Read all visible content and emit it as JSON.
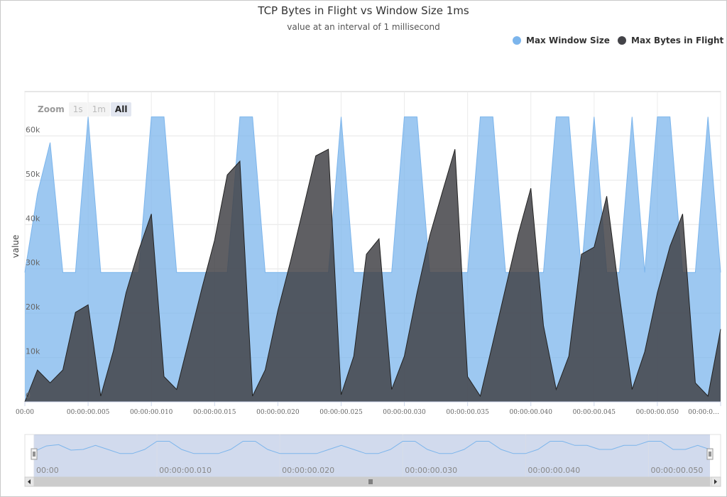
{
  "title": "TCP Bytes in Flight vs Window Size 1ms",
  "subtitle": "value at an interval of 1 millisecond",
  "zoom": {
    "label": "Zoom",
    "buttons": [
      "1s",
      "1m",
      "All"
    ],
    "active": "All"
  },
  "colors": {
    "window": "#7cb5ec",
    "flight": "#434348"
  },
  "navigator_labels": [
    "00:00",
    "00:00:00.010",
    "00:00:00.020",
    "00:00:00.030",
    "00:00:00.040",
    "00:00:00.050"
  ],
  "chart_data": {
    "type": "area",
    "title": "TCP Bytes in Flight vs Window Size 1ms",
    "subtitle": "value at an interval of 1 millisecond",
    "ylabel": "value",
    "xlabel": "",
    "ylim": [
      0,
      70000
    ],
    "xlim": [
      0,
      55
    ],
    "x_unit": "ms",
    "yticks": [
      "0",
      "10k",
      "20k",
      "30k",
      "40k",
      "50k",
      "60k"
    ],
    "xticks": [
      "00:00",
      "00:00:00.005",
      "00:00:00.010",
      "00:00:00.015",
      "00:00:00.020",
      "00:00:00.025",
      "00:00:00.030",
      "00:00:00.035",
      "00:00:00.040",
      "00:00:00.045",
      "00:00:00.050",
      "00:00:0…"
    ],
    "grid": true,
    "legend_position": "top-right",
    "series": [
      {
        "name": "Max Window Size",
        "x": [
          0,
          1,
          2,
          3,
          4,
          5,
          6,
          7,
          8,
          9,
          10,
          11,
          12,
          13,
          14,
          15,
          16,
          17,
          18,
          19,
          20,
          21,
          22,
          23,
          24,
          25,
          26,
          27,
          28,
          29,
          30,
          31,
          32,
          33,
          34,
          35,
          36,
          37,
          38,
          39,
          40,
          41,
          42,
          43,
          44,
          45,
          46,
          47,
          48,
          49,
          50,
          51,
          52,
          53,
          54,
          55
        ],
        "values": [
          29200,
          47000,
          58500,
          29200,
          29200,
          64300,
          29200,
          29200,
          29200,
          29200,
          64300,
          64300,
          29200,
          29200,
          29200,
          29200,
          29200,
          64300,
          64300,
          29200,
          29200,
          29200,
          29200,
          29200,
          29200,
          64300,
          29200,
          29200,
          29200,
          29200,
          64300,
          64300,
          29200,
          29200,
          29200,
          29200,
          64300,
          64300,
          29200,
          29200,
          29200,
          29200,
          64300,
          64300,
          29200,
          64300,
          29200,
          29200,
          64300,
          29200,
          64300,
          64300,
          29200,
          29200,
          64300,
          29200
        ]
      },
      {
        "name": "Max Bytes in Flight",
        "x": [
          0,
          1,
          2,
          3,
          4,
          5,
          6,
          7,
          8,
          9,
          10,
          11,
          12,
          13,
          14,
          15,
          16,
          17,
          18,
          19,
          20,
          21,
          22,
          23,
          24,
          25,
          26,
          27,
          28,
          29,
          30,
          31,
          32,
          33,
          34,
          35,
          36,
          37,
          38,
          39,
          40,
          41,
          42,
          43,
          44,
          45,
          46,
          47,
          48,
          49,
          50,
          51,
          52,
          53,
          54,
          55
        ],
        "values": [
          0,
          7200,
          4300,
          7200,
          20200,
          21900,
          1300,
          11500,
          24600,
          34200,
          42400,
          5700,
          2800,
          14200,
          25700,
          36500,
          51200,
          54300,
          1300,
          7200,
          20600,
          31700,
          43500,
          55500,
          57000,
          1600,
          10300,
          33300,
          36800,
          2800,
          10300,
          24600,
          37400,
          47300,
          57000,
          5700,
          1300,
          13400,
          25700,
          37800,
          48200,
          17200,
          2800,
          10300,
          33300,
          34900,
          46400,
          24100,
          2800,
          11300,
          24600,
          35100,
          42400,
          4300,
          1300,
          16400
        ]
      }
    ]
  }
}
